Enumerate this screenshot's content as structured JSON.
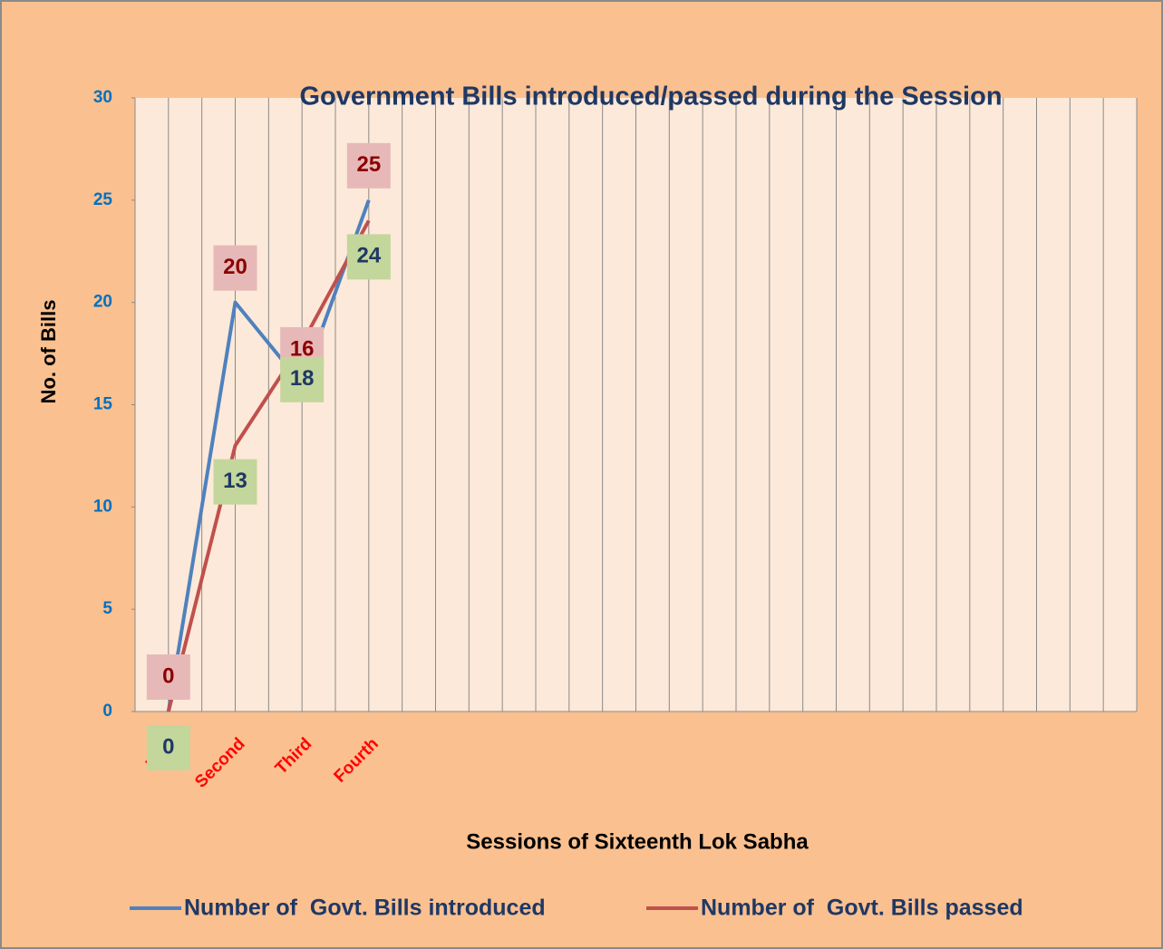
{
  "chart_data": {
    "type": "line",
    "title": "Government Bills introduced/passed during the Session",
    "x_label": "Sessions of Sixteenth Lok Sabha",
    "y_label": "No. of Bills",
    "categories": [
      "First",
      "Second",
      "Third",
      "Fourth",
      null,
      null,
      null,
      null,
      null,
      null,
      null,
      null,
      null,
      null,
      null
    ],
    "series": [
      {
        "name": "Number of  Govt. Bills introduced",
        "color": "#4f81bd",
        "label_fill": "#e6b9b8",
        "label_color": "#8b0000",
        "values": [
          0,
          20,
          16,
          25,
          null,
          null,
          null,
          null,
          null,
          null,
          null,
          null,
          null,
          null,
          null
        ]
      },
      {
        "name": "Number of  Govt. Bills passed",
        "color": "#c0504d",
        "label_fill": "#c3d69b",
        "label_color": "#1f3864",
        "values": [
          0,
          13,
          18,
          24,
          null,
          null,
          null,
          null,
          null,
          null,
          null,
          null,
          null,
          null,
          null
        ]
      }
    ],
    "ylim": [
      0,
      30
    ],
    "yticks": [
      0,
      5,
      10,
      15,
      20,
      25,
      30
    ],
    "xgrid": true
  }
}
